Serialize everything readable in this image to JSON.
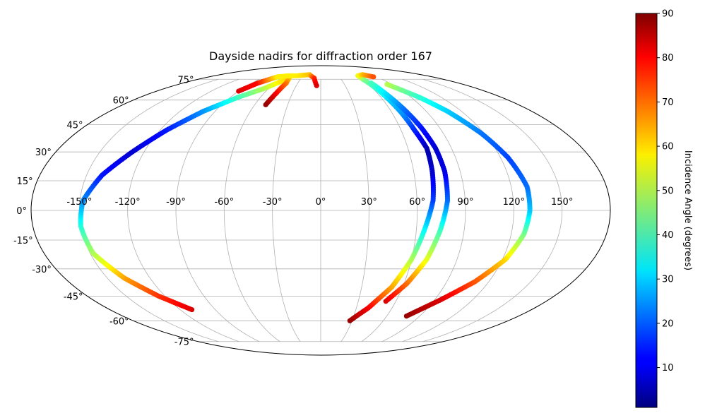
{
  "chart_data": {
    "type": "scatter",
    "projection": "mollweide",
    "title": "Dayside nadirs for diffraction order 167",
    "x_ticks": [
      "-150°",
      "-120°",
      "-90°",
      "-60°",
      "-30°",
      "0°",
      "30°",
      "60°",
      "90°",
      "120°",
      "150°"
    ],
    "x_tick_values": [
      -150,
      -120,
      -90,
      -60,
      -30,
      0,
      30,
      60,
      90,
      120,
      150
    ],
    "y_ticks": [
      "-75°",
      "-60°",
      "-45°",
      "-30°",
      "-15°",
      "0°",
      "15°",
      "30°",
      "45°",
      "60°",
      "75°"
    ],
    "y_tick_values": [
      -75,
      -60,
      -45,
      -30,
      -15,
      0,
      15,
      30,
      45,
      60,
      75
    ],
    "grid": true,
    "colormap": "jet",
    "colorbar": {
      "label": "Incidence Angle (degrees)",
      "range": [
        1,
        90
      ],
      "ticks": [
        "10",
        "20",
        "30",
        "40",
        "50",
        "60",
        "70",
        "80",
        "90"
      ],
      "tick_values": [
        10,
        20,
        30,
        40,
        50,
        60,
        70,
        80,
        90
      ]
    },
    "series": [
      {
        "points": [
          {
            "lon": -110,
            "lat": -53,
            "c": 82
          },
          {
            "lon": -125,
            "lat": -45,
            "c": 75
          },
          {
            "lon": -138,
            "lat": -35,
            "c": 65
          },
          {
            "lon": -148,
            "lat": -22,
            "c": 50
          },
          {
            "lon": -150,
            "lat": -8,
            "c": 38
          },
          {
            "lon": -148,
            "lat": 5,
            "c": 25
          },
          {
            "lon": -140,
            "lat": 18,
            "c": 14
          },
          {
            "lon": -128,
            "lat": 30,
            "c": 8
          },
          {
            "lon": -115,
            "lat": 42,
            "c": 14
          },
          {
            "lon": -100,
            "lat": 53,
            "c": 25
          },
          {
            "lon": -82,
            "lat": 62,
            "c": 40
          },
          {
            "lon": -65,
            "lat": 68,
            "c": 50
          },
          {
            "lon": -55,
            "lat": 73,
            "c": 58
          },
          {
            "lon": -48,
            "lat": 76,
            "c": 60
          },
          {
            "lon": -45,
            "lat": 72,
            "c": 68
          },
          {
            "lon": -47,
            "lat": 65,
            "c": 78
          },
          {
            "lon": -50,
            "lat": 57,
            "c": 88
          }
        ]
      },
      {
        "points": [
          {
            "lon": -90,
            "lat": 66,
            "c": 82
          },
          {
            "lon": -82,
            "lat": 72,
            "c": 78
          },
          {
            "lon": -70,
            "lat": 77,
            "c": 58
          },
          {
            "lon": -55,
            "lat": 78,
            "c": 58
          },
          {
            "lon": -40,
            "lat": 78,
            "c": 58
          },
          {
            "lon": -20,
            "lat": 79,
            "c": 62
          },
          {
            "lon": -10,
            "lat": 76,
            "c": 75
          },
          {
            "lon": -5,
            "lat": 70,
            "c": 82
          }
        ]
      },
      {
        "points": [
          {
            "lon": 28,
            "lat": -60,
            "c": 88
          },
          {
            "lon": 40,
            "lat": -52,
            "c": 80
          },
          {
            "lon": 52,
            "lat": -40,
            "c": 65
          },
          {
            "lon": 60,
            "lat": -25,
            "c": 50
          },
          {
            "lon": 65,
            "lat": -10,
            "c": 35
          },
          {
            "lon": 70,
            "lat": 5,
            "c": 18
          },
          {
            "lon": 72,
            "lat": 20,
            "c": 8
          },
          {
            "lon": 73,
            "lat": 32,
            "c": 5
          },
          {
            "lon": 70,
            "lat": 42,
            "c": 15
          },
          {
            "lon": 68,
            "lat": 52,
            "c": 25
          },
          {
            "lon": 66,
            "lat": 60,
            "c": 30
          },
          {
            "lon": 64,
            "lat": 68,
            "c": 38
          },
          {
            "lon": 62,
            "lat": 75,
            "c": 45
          },
          {
            "lon": 63,
            "lat": 78,
            "c": 55
          },
          {
            "lon": 75,
            "lat": 79,
            "c": 62
          },
          {
            "lon": 85,
            "lat": 77,
            "c": 72
          }
        ]
      },
      {
        "points": [
          {
            "lon": 52,
            "lat": -48,
            "c": 82
          },
          {
            "lon": 62,
            "lat": -38,
            "c": 70
          },
          {
            "lon": 70,
            "lat": -25,
            "c": 55
          },
          {
            "lon": 75,
            "lat": -10,
            "c": 40
          },
          {
            "lon": 79,
            "lat": 5,
            "c": 22
          },
          {
            "lon": 80,
            "lat": 20,
            "c": 10
          },
          {
            "lon": 79,
            "lat": 32,
            "c": 8
          },
          {
            "lon": 76,
            "lat": 44,
            "c": 14
          },
          {
            "lon": 72,
            "lat": 55,
            "c": 22
          },
          {
            "lon": 68,
            "lat": 65,
            "c": 32
          },
          {
            "lon": 66,
            "lat": 72,
            "c": 40
          }
        ]
      },
      {
        "points": [
          {
            "lon": 78,
            "lat": -57,
            "c": 88
          },
          {
            "lon": 95,
            "lat": -47,
            "c": 82
          },
          {
            "lon": 110,
            "lat": -37,
            "c": 72
          },
          {
            "lon": 122,
            "lat": -25,
            "c": 60
          },
          {
            "lon": 128,
            "lat": -12,
            "c": 45
          },
          {
            "lon": 130,
            "lat": 0,
            "c": 30
          },
          {
            "lon": 130,
            "lat": 12,
            "c": 22
          },
          {
            "lon": 125,
            "lat": 27,
            "c": 18
          },
          {
            "lon": 118,
            "lat": 40,
            "c": 22
          },
          {
            "lon": 108,
            "lat": 53,
            "c": 30
          },
          {
            "lon": 98,
            "lat": 62,
            "c": 38
          },
          {
            "lon": 90,
            "lat": 67,
            "c": 44
          },
          {
            "lon": 84,
            "lat": 71,
            "c": 50
          }
        ]
      }
    ]
  }
}
